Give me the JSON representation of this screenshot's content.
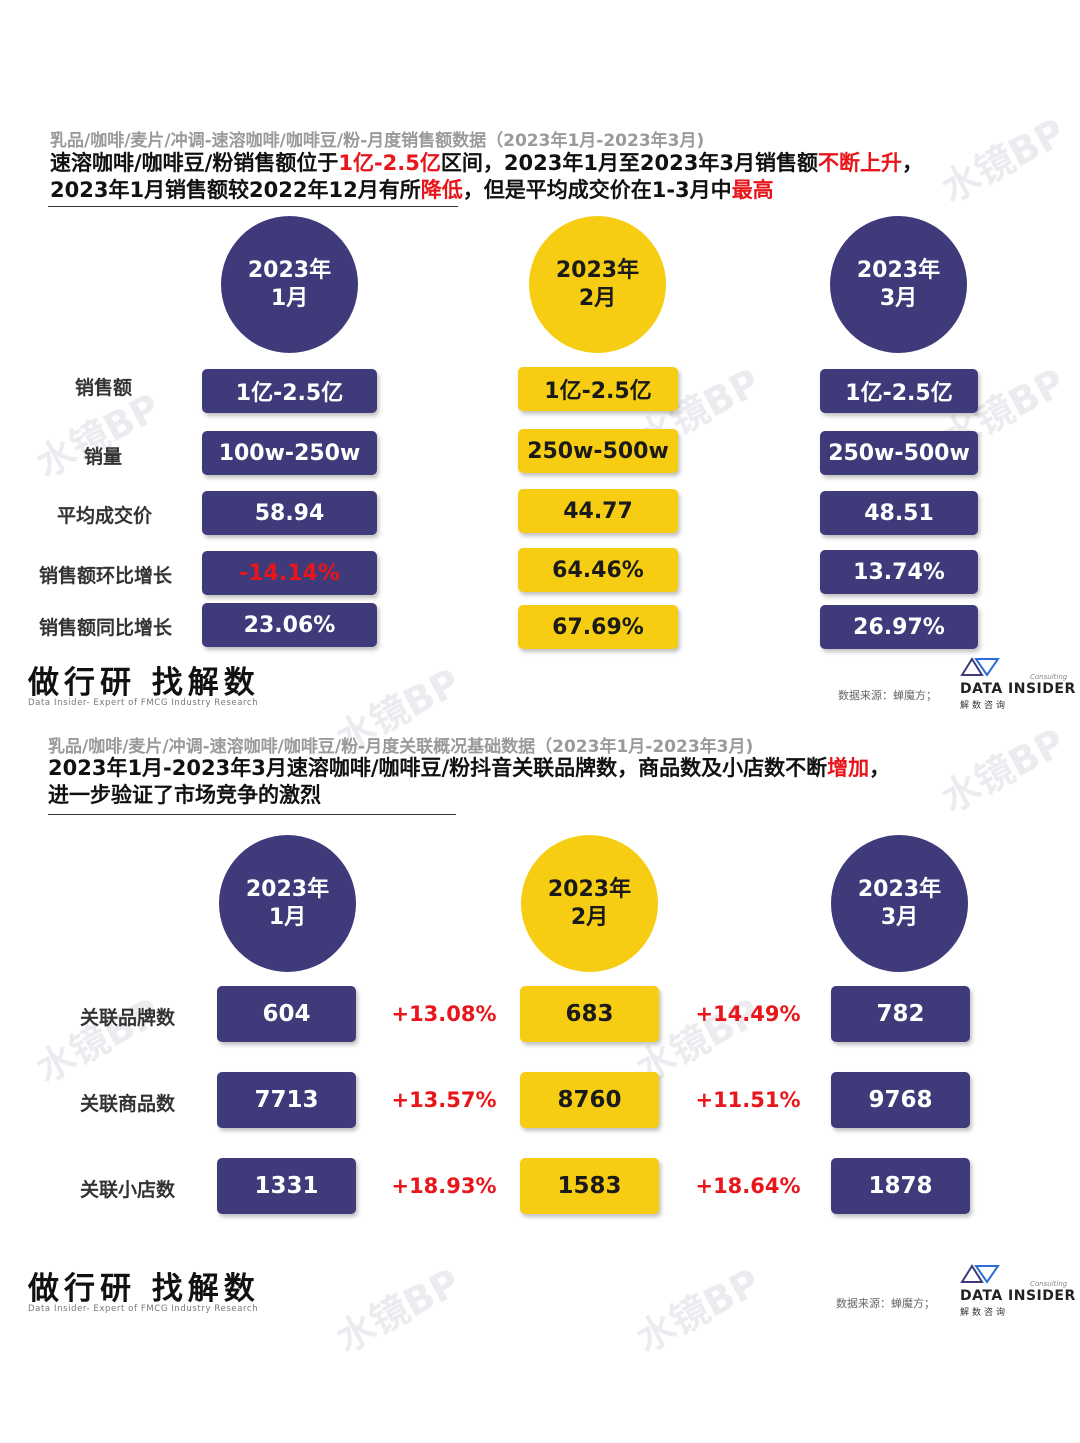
{
  "top": {
    "subtitle": "乳品/咖啡/麦片/冲调-速溶咖啡/咖啡豆/粉-月度销售额数据（2023年1月-2023年3月)",
    "headline_line1": [
      {
        "text": "速溶咖啡/咖啡豆/粉销售额位于",
        "red": false
      },
      {
        "text": "1亿-2.5亿",
        "red": true
      },
      {
        "text": "区间，2023年1月至2023年3月销售额",
        "red": false
      },
      {
        "text": "不断上升",
        "red": true
      },
      {
        "text": "，",
        "red": false
      }
    ],
    "headline_line2": [
      {
        "text": "2023年1月销售额较2022年12月有所",
        "red": false
      },
      {
        "text": "降低",
        "red": true
      },
      {
        "text": "，但是平均成交价在1-3月中",
        "red": false
      },
      {
        "text": "最高",
        "red": true
      }
    ],
    "months": [
      {
        "year": "2023年",
        "month": "1月"
      },
      {
        "year": "2023年",
        "month": "2月"
      },
      {
        "year": "2023年",
        "month": "3月"
      }
    ],
    "row_labels": [
      "销售额",
      "销量",
      "平均成交价",
      "销售额环比增长",
      "销售额同比增长"
    ],
    "col1": [
      "1亿-2.5亿",
      "100w-250w",
      "58.94",
      "-14.14%",
      "23.06%"
    ],
    "col2": [
      "1亿-2.5亿",
      "250w-500w",
      "44.77",
      "64.46%",
      "67.69%"
    ],
    "col3": [
      "1亿-2.5亿",
      "250w-500w",
      "48.51",
      "13.74%",
      "26.97%"
    ]
  },
  "bottom": {
    "subtitle": "乳品/咖啡/麦片/冲调-速溶咖啡/咖啡豆/粉-月度关联概况基础数据（2023年1月-2023年3月)",
    "headline_line1": [
      {
        "text": "2023年1月-2023年3月速溶咖啡/咖啡豆/粉抖音关联品牌数，商品数及小店数不断",
        "red": false
      },
      {
        "text": "增加",
        "red": true
      },
      {
        "text": "，",
        "red": false
      }
    ],
    "headline_line2": [
      {
        "text": "进一步验证了市场竞争的激烈",
        "red": false
      }
    ],
    "months": [
      {
        "year": "2023年",
        "month": "1月"
      },
      {
        "year": "2023年",
        "month": "2月"
      },
      {
        "year": "2023年",
        "month": "3月"
      }
    ],
    "row_labels": [
      "关联品牌数",
      "关联商品数",
      "关联小店数"
    ],
    "col1": [
      "604",
      "7713",
      "1331"
    ],
    "col2": [
      "683",
      "8760",
      "1583"
    ],
    "col3": [
      "782",
      "9768",
      "1878"
    ],
    "growth1": [
      "+13.08%",
      "+13.57%",
      "+18.93%"
    ],
    "growth2": [
      "+14.49%",
      "+11.51%",
      "+18.64%"
    ]
  },
  "brand": {
    "cn": "做行研 找解数",
    "en": "Data Insider- Expert of FMCG Industry Research"
  },
  "source": "数据来源：蝉魔方；",
  "logo": {
    "title": "DATA INSIDER",
    "sub": "解数咨询",
    "consulting": "Consulting"
  },
  "watermark": "水镜BP",
  "colors": {
    "navy": "#3f3a7a",
    "gold": "#f6cd12",
    "red": "#e8161b"
  }
}
